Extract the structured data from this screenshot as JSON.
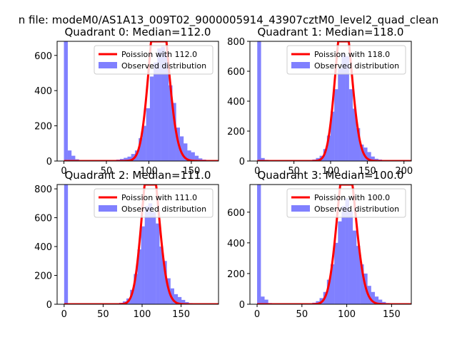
{
  "figure": {
    "suptitle": "n file: modeM0/AS1A13_009T02_9000005914_43907cztM0_level2_quad_clean"
  },
  "colors": {
    "histogram": "#8080ff",
    "poisson": "#ff0000",
    "axis": "#000000"
  },
  "chart_data": [
    {
      "type": "bar",
      "title": "Quadrant 0: Median=112.0",
      "xlim": [
        -8,
        182
      ],
      "ylim": [
        0,
        680
      ],
      "xticks": [
        0,
        50,
        100,
        150
      ],
      "yticks": [
        0,
        200,
        400,
        600
      ],
      "bin_width": 4.4,
      "series": [
        {
          "name": "Observed distribution",
          "x": [
            0,
            4.4,
            8.8,
            13.2,
            17.6,
            22,
            26.4,
            30.8,
            35.2,
            39.6,
            44,
            48.4,
            52.8,
            57.2,
            61.6,
            66,
            70.4,
            74.8,
            79.2,
            83.6,
            88,
            92.4,
            96.8,
            101.2,
            105.6,
            110,
            114.4,
            118.8,
            123.2,
            127.6,
            132,
            136.4,
            140.8,
            145.2,
            149.6,
            154,
            158.4,
            162.8,
            167.2,
            171.6
          ],
          "values": [
            700,
            60,
            30,
            10,
            5,
            5,
            3,
            3,
            3,
            3,
            3,
            3,
            3,
            5,
            8,
            12,
            18,
            25,
            40,
            60,
            130,
            200,
            300,
            480,
            560,
            640,
            650,
            610,
            430,
            330,
            190,
            140,
            100,
            60,
            50,
            30,
            15,
            8,
            5,
            3
          ]
        },
        {
          "name": "Poission with 112.0",
          "lambda": 112.0
        }
      ]
    },
    {
      "type": "bar",
      "title": "Quadrant 1: Median=118.0",
      "xlim": [
        -10,
        210
      ],
      "ylim": [
        0,
        800
      ],
      "xticks": [
        0,
        50,
        100,
        150,
        200
      ],
      "yticks": [
        0,
        200,
        400,
        600,
        800
      ],
      "bin_width": 5,
      "series": [
        {
          "name": "Observed distribution",
          "x": [
            0,
            5,
            10,
            15,
            20,
            25,
            30,
            35,
            40,
            45,
            50,
            55,
            60,
            65,
            70,
            75,
            80,
            85,
            90,
            95,
            100,
            105,
            110,
            115,
            120,
            125,
            130,
            135,
            140,
            145,
            150,
            155,
            160,
            165,
            170,
            175,
            180,
            185,
            190,
            195
          ],
          "values": [
            820,
            20,
            8,
            5,
            3,
            3,
            3,
            3,
            3,
            3,
            3,
            3,
            3,
            3,
            5,
            10,
            20,
            35,
            80,
            170,
            330,
            480,
            620,
            720,
            700,
            480,
            350,
            220,
            110,
            90,
            60,
            30,
            15,
            10,
            5,
            3,
            3,
            3,
            3,
            3
          ]
        },
        {
          "name": "Poission with 118.0",
          "lambda": 118.0
        }
      ]
    },
    {
      "type": "bar",
      "title": "Quadrant 2: Median=111.0",
      "xlim": [
        -9,
        198
      ],
      "ylim": [
        0,
        830
      ],
      "xticks": [
        0,
        50,
        100,
        150
      ],
      "yticks": [
        0,
        200,
        400,
        600,
        800
      ],
      "bin_width": 4.7,
      "series": [
        {
          "name": "Observed distribution",
          "x": [
            0,
            4.7,
            9.4,
            14.1,
            18.8,
            23.5,
            28.2,
            32.9,
            37.6,
            42.3,
            47,
            51.7,
            56.4,
            61.1,
            65.8,
            70.5,
            75.2,
            79.9,
            84.6,
            89.3,
            94,
            98.7,
            103.4,
            108.1,
            112.8,
            117.5,
            122.2,
            126.9,
            131.6,
            136.3,
            141,
            145.7,
            150.4,
            155.1,
            159.8,
            164.5,
            169.2,
            173.9,
            178.6,
            183.3
          ],
          "values": [
            850,
            5,
            3,
            3,
            3,
            3,
            3,
            3,
            3,
            3,
            3,
            3,
            3,
            3,
            5,
            10,
            20,
            40,
            100,
            210,
            380,
            540,
            680,
            700,
            640,
            560,
            400,
            300,
            180,
            110,
            70,
            50,
            30,
            15,
            8,
            5,
            3,
            3,
            3,
            3
          ]
        },
        {
          "name": "Poission with 111.0",
          "lambda": 111.0
        }
      ]
    },
    {
      "type": "bar",
      "title": "Quadrant 3: Median=100.0",
      "xlim": [
        -8,
        172
      ],
      "ylim": [
        0,
        780
      ],
      "xticks": [
        0,
        50,
        100,
        150
      ],
      "yticks": [
        0,
        200,
        400,
        600
      ],
      "bin_width": 4.1,
      "series": [
        {
          "name": "Observed distribution",
          "x": [
            0,
            4.1,
            8.2,
            12.3,
            16.4,
            20.5,
            24.6,
            28.7,
            32.8,
            36.9,
            41,
            45.1,
            49.2,
            53.3,
            57.4,
            61.5,
            65.6,
            69.7,
            73.8,
            77.9,
            82,
            86.1,
            90.2,
            94.3,
            98.4,
            102.5,
            106.6,
            110.7,
            114.8,
            118.9,
            123,
            127.1,
            131.2,
            135.3,
            139.4,
            143.5,
            147.6,
            151.7,
            155.8
          ],
          "values": [
            800,
            50,
            30,
            8,
            5,
            3,
            3,
            3,
            3,
            3,
            3,
            3,
            3,
            3,
            5,
            10,
            20,
            40,
            80,
            160,
            260,
            400,
            540,
            640,
            690,
            610,
            480,
            380,
            260,
            200,
            120,
            80,
            50,
            30,
            15,
            8,
            5,
            3,
            3
          ]
        },
        {
          "name": "Poission with 100.0",
          "lambda": 100.0
        }
      ]
    }
  ]
}
